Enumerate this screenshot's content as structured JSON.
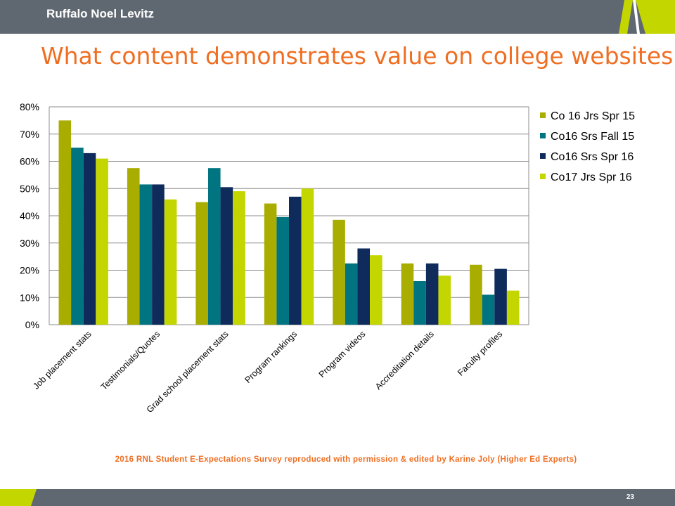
{
  "header": {
    "brand": "Ruffalo Noel Levitz"
  },
  "slide": {
    "title": "What content demonstrates value on college websites",
    "source": "2016 RNL Student E-Expectations Survey reproduced with permission & edited by Karine Joly (Higher Ed Experts)",
    "page_number": "23"
  },
  "colors": {
    "header_bar": "#5f6870",
    "title": "#ef6e22",
    "accent_lime": "#c4d600"
  },
  "chart_data": {
    "type": "bar",
    "categories": [
      "Job placement stats",
      "Testimonials/Quotes",
      "Grad school placement stats",
      "Program rankings",
      "Program videos",
      "Accreditation details",
      "Faculty profiles"
    ],
    "series": [
      {
        "name": "Co 16 Jrs Spr 15",
        "color": "#a9ad00",
        "values": [
          75,
          57.5,
          45,
          44.5,
          38.5,
          22.5,
          22
        ]
      },
      {
        "name": "Co16 Srs Fall 15",
        "color": "#007481",
        "values": [
          65,
          51.5,
          57.5,
          39.5,
          22.5,
          16,
          11
        ]
      },
      {
        "name": "Co16 Srs Spr 16",
        "color": "#0f2b5b",
        "values": [
          63,
          51.5,
          50.5,
          47,
          28,
          22.5,
          20.5
        ]
      },
      {
        "name": "Co17 Jrs Spr 16",
        "color": "#c4d600",
        "values": [
          61,
          46,
          49,
          50,
          25.5,
          18,
          12.5
        ]
      }
    ],
    "yticks": [
      "0%",
      "10%",
      "20%",
      "30%",
      "40%",
      "50%",
      "60%",
      "70%",
      "80%"
    ],
    "ylim": [
      0,
      80
    ],
    "grid": true,
    "legend": "right",
    "xlabel": "",
    "ylabel": ""
  }
}
